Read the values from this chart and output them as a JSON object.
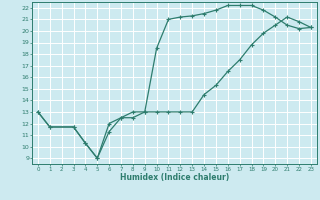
{
  "xlabel": "Humidex (Indice chaleur)",
  "bg_color": "#cdeaf0",
  "grid_color": "#ffffff",
  "line_color": "#2e7d6e",
  "xlim": [
    -0.5,
    23.5
  ],
  "ylim": [
    8.5,
    22.5
  ],
  "xticks": [
    0,
    1,
    2,
    3,
    4,
    5,
    6,
    7,
    8,
    9,
    10,
    11,
    12,
    13,
    14,
    15,
    16,
    17,
    18,
    19,
    20,
    21,
    22,
    23
  ],
  "yticks": [
    9,
    10,
    11,
    12,
    13,
    14,
    15,
    16,
    17,
    18,
    19,
    20,
    21,
    22
  ],
  "curve1_x": [
    0,
    1,
    3,
    4,
    5,
    6,
    7,
    8,
    9,
    10,
    11,
    12,
    13,
    14,
    15,
    16,
    17,
    18,
    19,
    20,
    21,
    22,
    23
  ],
  "curve1_y": [
    13.0,
    11.7,
    11.7,
    10.3,
    9.0,
    11.3,
    12.5,
    13.0,
    13.0,
    18.5,
    21.0,
    21.2,
    21.3,
    21.5,
    21.8,
    22.2,
    22.2,
    22.2,
    21.8,
    21.2,
    20.5,
    20.2,
    20.3
  ],
  "curve2_x": [
    0,
    1,
    3,
    4,
    5,
    6,
    7,
    8,
    9,
    10,
    11,
    12,
    13,
    14,
    15,
    16,
    17,
    18,
    19,
    20,
    21,
    22,
    23
  ],
  "curve2_y": [
    13.0,
    11.7,
    11.7,
    10.3,
    9.0,
    12.0,
    12.5,
    12.5,
    13.0,
    13.0,
    13.0,
    13.0,
    13.0,
    14.5,
    15.3,
    16.5,
    17.5,
    18.8,
    19.8,
    20.5,
    21.2,
    20.8,
    20.3
  ]
}
